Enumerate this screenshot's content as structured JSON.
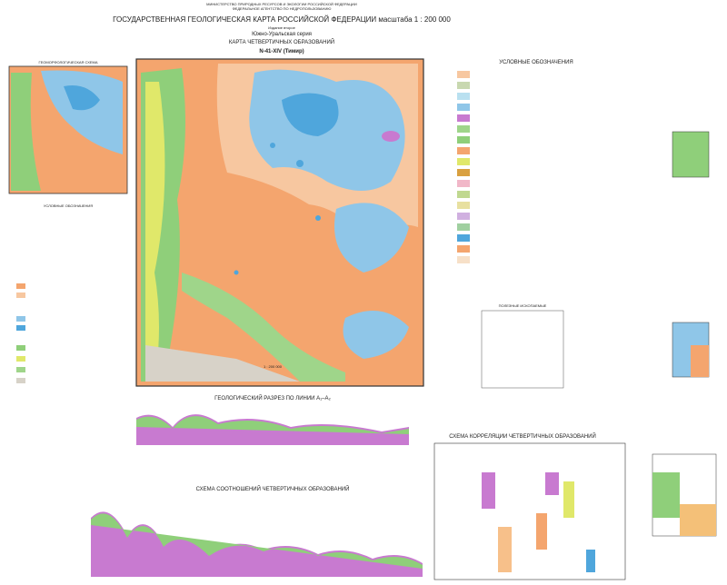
{
  "header": {
    "ministry": "МИНИСТЕРСТВО ПРИРОДНЫХ РЕСУРСОВ И ЭКОЛОГИИ РОССИЙСКОЙ ФЕДЕРАЦИИ",
    "agency": "ФЕДЕРАЛЬНОЕ АГЕНТСТВО ПО НЕДРОПОЛЬЗОВАНИЮ",
    "title": "ГОСУДАРСТВЕННАЯ ГЕОЛОГИЧЕСКАЯ КАРТА РОССИЙСКОЙ ФЕДЕРАЦИИ масштаба 1 : 200 000",
    "edition": "Издание второе",
    "series": "Южно-Уральская серия",
    "map_title": "КАРТА ЧЕТВЕРТИЧНЫХ ОБРАЗОВАНИЙ",
    "sheet": "N-41-XIV (Тимир)"
  },
  "geomorph": {
    "title": "ГЕОМОРФОЛОГИЧЕСКАЯ СХЕМА",
    "legend_title": "УСЛОВНЫЕ ОБОЗНАЧЕНИЯ"
  },
  "legend": {
    "title": "УСЛОВНЫЕ ОБОЗНАЧЕНИЯ"
  },
  "minerals": {
    "title": "ПОЛЕЗНЫЕ ИСКОПАЕМЫЕ"
  },
  "scale": "1 : 200 000",
  "section": {
    "title": "ГЕОЛОГИЧЕСКИЙ РАЗРЕЗ ПО ЛИНИИ А₁–А₂"
  },
  "relations": {
    "title": "СХЕМА СООТНОШЕНИЙ ЧЕТВЕРТИЧНЫХ ОБРАЗОВАНИЙ"
  },
  "correlation": {
    "title": "СХЕМА КОРРЕЛЯЦИИ ЧЕТВЕРТИЧНЫХ ОБРАЗОВАНИЙ"
  }
}
